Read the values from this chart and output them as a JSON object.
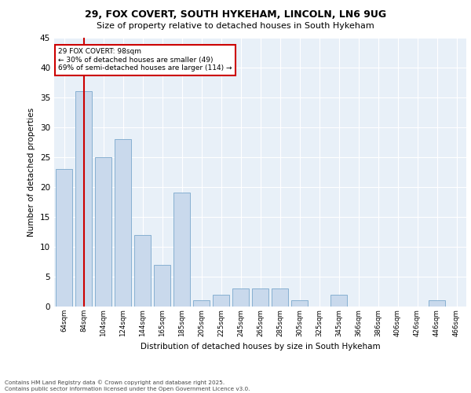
{
  "title1": "29, FOX COVERT, SOUTH HYKEHAM, LINCOLN, LN6 9UG",
  "title2": "Size of property relative to detached houses in South Hykeham",
  "xlabel": "Distribution of detached houses by size in South Hykeham",
  "ylabel": "Number of detached properties",
  "bar_labels": [
    "64sqm",
    "84sqm",
    "104sqm",
    "124sqm",
    "144sqm",
    "165sqm",
    "185sqm",
    "205sqm",
    "225sqm",
    "245sqm",
    "265sqm",
    "285sqm",
    "305sqm",
    "325sqm",
    "345sqm",
    "366sqm",
    "386sqm",
    "406sqm",
    "426sqm",
    "446sqm",
    "466sqm"
  ],
  "bar_values": [
    23,
    36,
    25,
    28,
    12,
    7,
    19,
    1,
    2,
    3,
    3,
    3,
    1,
    0,
    2,
    0,
    0,
    0,
    0,
    1,
    0
  ],
  "bar_color": "#c9d9ec",
  "bar_edge_color": "#7aa8cc",
  "subject_line_color": "#cc0000",
  "annotation_text": "29 FOX COVERT: 98sqm\n← 30% of detached houses are smaller (49)\n69% of semi-detached houses are larger (114) →",
  "annotation_box_color": "#ffffff",
  "annotation_box_edge": "#cc0000",
  "ylim": [
    0,
    45
  ],
  "yticks": [
    0,
    5,
    10,
    15,
    20,
    25,
    30,
    35,
    40,
    45
  ],
  "background_color": "#e8f0f8",
  "grid_color": "#ffffff",
  "footer1": "Contains HM Land Registry data © Crown copyright and database right 2025.",
  "footer2": "Contains public sector information licensed under the Open Government Licence v3.0."
}
